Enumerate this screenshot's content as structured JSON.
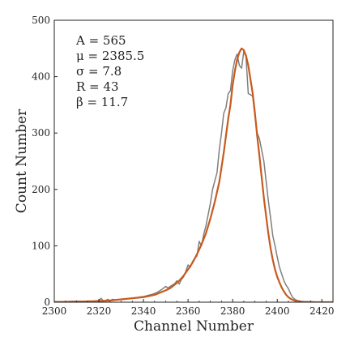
{
  "chart_data": {
    "type": "line",
    "xlabel": "Channel Number",
    "ylabel": "Count Number",
    "xlim": [
      2300,
      2425
    ],
    "ylim": [
      0,
      500
    ],
    "xticks": [
      2300,
      2320,
      2340,
      2360,
      2380,
      2400,
      2420
    ],
    "yticks": [
      0,
      100,
      200,
      300,
      400,
      500
    ],
    "grid": false,
    "annotations": [
      "A = 565",
      "μ = 2385.5",
      "σ = 7.8",
      "R = 43",
      "β = 11.7"
    ],
    "series": [
      {
        "kind": "data",
        "color": "#7f7f7f",
        "x": [
          2300,
          2305,
          2310,
          2315,
          2318,
          2320,
          2321,
          2322,
          2323,
          2324,
          2325,
          2326,
          2328,
          2330,
          2332,
          2335,
          2338,
          2340,
          2342,
          2344,
          2346,
          2348,
          2350,
          2351,
          2352,
          2354,
          2355,
          2356,
          2357,
          2358,
          2359,
          2360,
          2361,
          2362,
          2363,
          2364,
          2365,
          2366,
          2367,
          2368,
          2369,
          2370,
          2371,
          2372,
          2373,
          2374,
          2375,
          2376,
          2377,
          2378,
          2379,
          2380,
          2381,
          2382,
          2383,
          2384,
          2385,
          2386,
          2387,
          2388,
          2389,
          2390,
          2391,
          2392,
          2393,
          2394,
          2395,
          2396,
          2397,
          2398,
          2399,
          2400,
          2401,
          2402,
          2403,
          2404,
          2405,
          2406,
          2407,
          2408,
          2409,
          2410,
          2412,
          2415,
          2418,
          2420,
          2425
        ],
        "y": [
          1,
          1,
          2,
          1,
          2,
          3,
          7,
          2,
          3,
          5,
          2,
          5,
          4,
          5,
          6,
          7,
          9,
          10,
          12,
          14,
          17,
          22,
          28,
          25,
          28,
          33,
          38,
          32,
          40,
          45,
          55,
          66,
          62,
          72,
          78,
          82,
          108,
          100,
          120,
          135,
          155,
          175,
          200,
          215,
          230,
          270,
          300,
          335,
          345,
          370,
          375,
          410,
          430,
          440,
          420,
          415,
          445,
          435,
          370,
          368,
          365,
          330,
          300,
          290,
          270,
          250,
          215,
          180,
          150,
          118,
          100,
          80,
          62,
          50,
          38,
          30,
          24,
          15,
          8,
          5,
          3,
          2,
          1,
          1,
          0,
          0,
          0
        ]
      },
      {
        "kind": "fit",
        "color": "#c85a1e",
        "x": [
          2300,
          2305,
          2310,
          2315,
          2320,
          2325,
          2330,
          2335,
          2340,
          2345,
          2350,
          2352,
          2354,
          2356,
          2358,
          2360,
          2362,
          2364,
          2366,
          2368,
          2370,
          2372,
          2374,
          2376,
          2378,
          2379,
          2380,
          2381,
          2382,
          2383,
          2384,
          2385,
          2386,
          2387,
          2388,
          2389,
          2390,
          2391,
          2392,
          2393,
          2394,
          2395,
          2396,
          2397,
          2398,
          2399,
          2400,
          2401,
          2402,
          2403,
          2404,
          2405,
          2406,
          2407,
          2408,
          2409,
          2410,
          2412,
          2415,
          2420,
          2425
        ],
        "y": [
          0,
          0.5,
          1,
          1.5,
          2,
          3,
          5,
          7,
          9,
          13,
          21,
          25,
          31,
          38,
          47,
          58,
          70,
          85,
          102,
          122,
          148,
          178,
          213,
          265,
          325,
          350,
          385,
          410,
          430,
          443,
          450,
          447,
          437,
          420,
          395,
          370,
          335,
          295,
          260,
          222,
          185,
          153,
          122,
          96,
          75,
          58,
          45,
          35,
          26,
          19,
          13,
          9,
          6,
          4,
          2.5,
          1.5,
          1,
          0.5,
          0,
          0,
          0
        ]
      }
    ]
  }
}
